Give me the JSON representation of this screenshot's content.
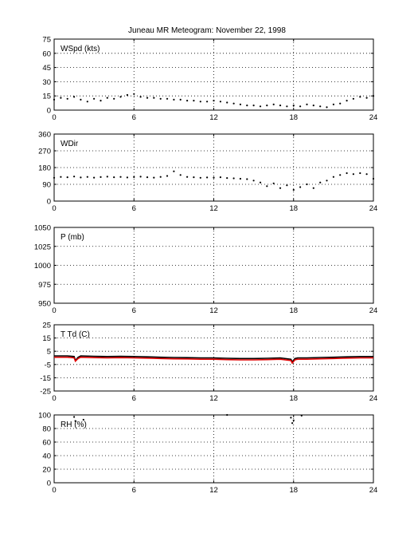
{
  "title": "Juneau MR Meteogram:   November 22, 1998",
  "chart_data": [
    {
      "type": "scatter",
      "label": "WSpd (kts)",
      "xlim": [
        0,
        24
      ],
      "xticks": [
        0,
        6,
        12,
        18,
        24
      ],
      "ylim": [
        0,
        75
      ],
      "yticks": [
        0,
        15,
        30,
        45,
        60,
        75
      ],
      "grid": true,
      "series": [
        {
          "color": "#000000",
          "x": [
            0,
            0.5,
            1,
            1.5,
            2,
            2.5,
            3,
            3.5,
            4,
            4.5,
            5,
            5.5,
            6,
            6.5,
            7,
            7.5,
            8,
            8.5,
            9,
            9.5,
            10,
            10.5,
            11,
            11.5,
            12,
            12.5,
            13,
            13.5,
            14,
            14.5,
            15,
            15.5,
            16,
            16.5,
            17,
            17.5,
            18,
            18.5,
            19,
            19.5,
            20,
            20.5,
            21,
            21.5,
            22,
            22.5,
            23,
            23.5,
            24
          ],
          "y": [
            11,
            13,
            12,
            14,
            11,
            9,
            12,
            10,
            13,
            12,
            14,
            16,
            17,
            14,
            13,
            13,
            12,
            12,
            11,
            11,
            10,
            10,
            9,
            9,
            10,
            9,
            8,
            7,
            6,
            5,
            5,
            4,
            5,
            6,
            5,
            4,
            5,
            4,
            6,
            5,
            4,
            3,
            6,
            7,
            10,
            12,
            14,
            13,
            15
          ]
        }
      ]
    },
    {
      "type": "scatter",
      "label": "WDir",
      "xlim": [
        0,
        24
      ],
      "xticks": [
        0,
        6,
        12,
        18,
        24
      ],
      "ylim": [
        0,
        360
      ],
      "yticks": [
        0,
        90,
        180,
        270,
        360
      ],
      "grid": true,
      "series": [
        {
          "color": "#000000",
          "x": [
            0,
            0.5,
            1,
            1.5,
            2,
            2.5,
            3,
            3.5,
            4,
            4.5,
            5,
            5.5,
            6,
            6.5,
            7,
            7.5,
            8,
            8.5,
            9,
            9.5,
            10,
            10.5,
            11,
            11.5,
            12,
            12.5,
            13,
            13.5,
            14,
            14.5,
            15,
            15.5,
            16,
            16.5,
            17,
            17.5,
            18,
            18.5,
            19,
            19.5,
            20,
            20.5,
            21,
            21.5,
            22,
            22.5,
            23,
            23.5,
            24
          ],
          "y": [
            125,
            130,
            128,
            132,
            127,
            130,
            126,
            129,
            131,
            128,
            130,
            127,
            129,
            131,
            128,
            126,
            130,
            135,
            160,
            140,
            130,
            128,
            125,
            127,
            126,
            128,
            124,
            122,
            120,
            118,
            110,
            100,
            80,
            95,
            70,
            85,
            60,
            75,
            90,
            70,
            100,
            110,
            130,
            140,
            150,
            145,
            150,
            145,
            120
          ]
        }
      ]
    },
    {
      "type": "scatter",
      "label": "P (mb)",
      "xlim": [
        0,
        24
      ],
      "xticks": [
        0,
        6,
        12,
        18,
        24
      ],
      "ylim": [
        950,
        1050
      ],
      "yticks": [
        950,
        975,
        1000,
        1025,
        1050
      ],
      "grid": true,
      "series": []
    },
    {
      "type": "line",
      "label": "T Td (C)",
      "xlim": [
        0,
        24
      ],
      "xticks": [
        0,
        6,
        12,
        18,
        24
      ],
      "ylim": [
        -25,
        25
      ],
      "yticks": [
        -25,
        -15,
        -5,
        5,
        15,
        25
      ],
      "grid": true,
      "series": [
        {
          "color": "#000000",
          "x": [
            0,
            1,
            1.5,
            1.6,
            1.8,
            2,
            3,
            4,
            5,
            6,
            7,
            8,
            9,
            10,
            11,
            12,
            13,
            14,
            15,
            16,
            17,
            17.8,
            17.9,
            18.1,
            18.3,
            19,
            20,
            21,
            22,
            23,
            24
          ],
          "y": [
            1.5,
            1.5,
            1,
            -2,
            0.5,
            1.5,
            1.2,
            1,
            1.2,
            1,
            0.8,
            0.5,
            0.3,
            0.2,
            0,
            0,
            -0.3,
            -0.5,
            -0.5,
            -0.3,
            0,
            -1,
            -3,
            -0.5,
            0,
            0,
            0.3,
            0.5,
            0.8,
            1,
            1
          ]
        },
        {
          "color": "#e00000",
          "x": [
            0,
            1,
            1.5,
            1.6,
            1.8,
            2,
            3,
            4,
            5,
            6,
            7,
            8,
            9,
            10,
            11,
            12,
            13,
            14,
            15,
            16,
            17,
            17.8,
            17.9,
            18.1,
            18.3,
            19,
            20,
            21,
            22,
            23,
            24
          ],
          "y": [
            0.5,
            0.5,
            0,
            -2.5,
            -0.5,
            0.5,
            0.2,
            0,
            0.2,
            0,
            -0.2,
            -0.5,
            -0.7,
            -0.8,
            -1,
            -1,
            -1.3,
            -1.5,
            -1.5,
            -1.3,
            -1,
            -2,
            -4,
            -1.5,
            -1,
            -1,
            -0.7,
            -0.5,
            -0.2,
            0,
            0
          ]
        }
      ]
    },
    {
      "type": "scatter",
      "label": "RH (%)",
      "xlim": [
        0,
        24
      ],
      "xticks": [
        0,
        6,
        12,
        18,
        24
      ],
      "ylim": [
        0,
        100
      ],
      "yticks": [
        0,
        20,
        40,
        60,
        80,
        100
      ],
      "grid": true,
      "series": [
        {
          "color": "#000000",
          "x": [
            1.5,
            1.6,
            2.2,
            13,
            17.8,
            17.9,
            18,
            18.6
          ],
          "y": [
            97,
            91,
            93,
            100,
            96,
            88,
            92,
            99
          ]
        }
      ]
    }
  ]
}
